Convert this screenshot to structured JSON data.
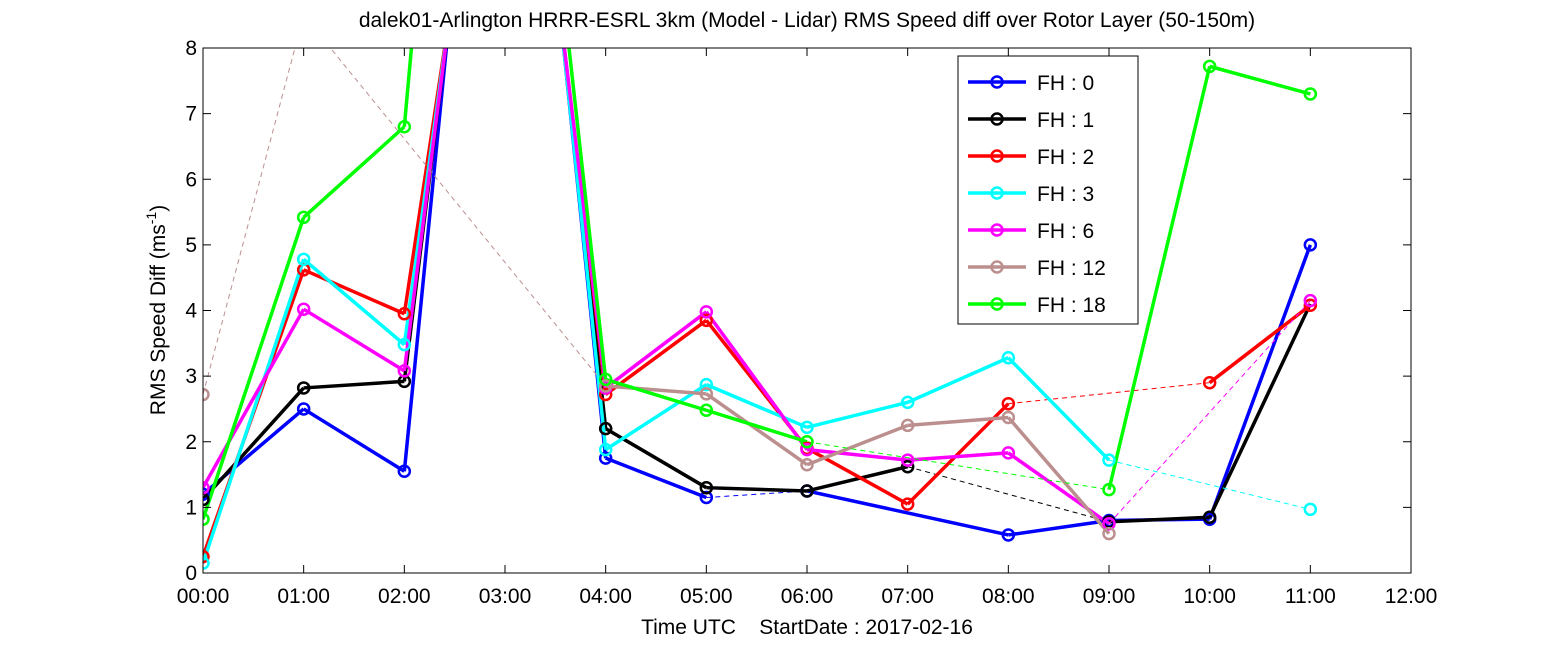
{
  "chart_data": {
    "type": "line",
    "title": "dalek01-Arlington HRRR-ESRL 3km (Model - Lidar) RMS Speed diff over Rotor Layer (50-150m)",
    "xlabel": "Time UTC    StartDate : 2017-02-16",
    "ylabel_main": "RMS Speed Diff (ms",
    "ylabel_sup": "-1",
    "ylabel_end": ")",
    "xlim": [
      0,
      12
    ],
    "ylim": [
      0,
      8
    ],
    "x_ticks": [
      0,
      1,
      2,
      3,
      4,
      5,
      6,
      7,
      8,
      9,
      10,
      11,
      12
    ],
    "x_tick_labels": [
      "00:00",
      "01:00",
      "02:00",
      "03:00",
      "04:00",
      "05:00",
      "06:00",
      "07:00",
      "08:00",
      "09:00",
      "10:00",
      "11:00",
      "12:00"
    ],
    "y_ticks": [
      0,
      1,
      2,
      3,
      4,
      5,
      6,
      7,
      8
    ],
    "y_tick_labels": [
      "0",
      "1",
      "2",
      "3",
      "4",
      "5",
      "6",
      "7",
      "8"
    ],
    "grid": false,
    "legend_position": "top-right",
    "series": [
      {
        "name": "FH : 0",
        "color": "#0000ff",
        "points": [
          [
            0,
            1.2
          ],
          [
            1,
            2.5
          ],
          [
            2,
            1.55
          ],
          [
            2.45,
            8.5
          ],
          [
            3.55,
            8.5
          ],
          [
            4,
            1.75
          ],
          [
            5,
            1.15
          ],
          [
            6,
            1.25
          ],
          [
            8,
            0.58
          ],
          [
            9,
            0.8
          ],
          [
            10,
            0.82
          ],
          [
            11,
            5.0
          ]
        ],
        "solid_segments": [
          [
            0,
            1
          ],
          [
            1,
            2
          ],
          [
            2,
            3
          ],
          [
            4,
            5
          ],
          [
            5,
            6
          ],
          [
            7,
            8
          ],
          [
            8,
            9
          ],
          [
            9,
            10
          ],
          [
            10,
            11
          ]
        ]
      },
      {
        "name": "FH : 1",
        "color": "#000000",
        "points": [
          [
            0,
            1.12
          ],
          [
            1,
            2.82
          ],
          [
            2,
            2.92
          ],
          [
            2.45,
            8.5
          ],
          [
            3.55,
            8.5
          ],
          [
            4,
            2.2
          ],
          [
            5,
            1.3
          ],
          [
            6,
            1.25
          ],
          [
            7,
            1.62
          ],
          [
            9,
            0.78
          ],
          [
            10,
            0.85
          ],
          [
            11,
            4.1
          ]
        ],
        "solid_segments": [
          [
            0,
            1
          ],
          [
            1,
            2
          ],
          [
            2,
            3
          ],
          [
            4,
            5
          ],
          [
            5,
            6
          ],
          [
            6,
            7
          ],
          [
            7,
            8
          ],
          [
            9,
            10
          ],
          [
            10,
            11
          ]
        ]
      },
      {
        "name": "FH : 2",
        "color": "#ff0000",
        "points": [
          [
            0,
            0.25
          ],
          [
            1,
            4.62
          ],
          [
            2,
            3.95
          ],
          [
            2.45,
            8.5
          ],
          [
            3.55,
            8.5
          ],
          [
            4,
            2.72
          ],
          [
            5,
            3.85
          ],
          [
            6,
            1.9
          ],
          [
            7,
            1.05
          ],
          [
            8,
            2.58
          ],
          [
            10,
            2.9
          ],
          [
            11,
            4.08
          ]
        ],
        "solid_segments": [
          [
            0,
            1
          ],
          [
            1,
            2
          ],
          [
            2,
            3
          ],
          [
            4,
            5
          ],
          [
            5,
            6
          ],
          [
            6,
            7
          ],
          [
            7,
            8
          ],
          [
            8,
            9
          ],
          [
            10,
            11
          ]
        ]
      },
      {
        "name": "FH : 3",
        "color": "#00ffff",
        "points": [
          [
            0,
            0.15
          ],
          [
            1,
            4.78
          ],
          [
            2,
            3.48
          ],
          [
            2.45,
            8.5
          ],
          [
            3.55,
            8.5
          ],
          [
            4,
            1.88
          ],
          [
            5,
            2.87
          ],
          [
            6,
            2.22
          ],
          [
            7,
            2.6
          ],
          [
            8,
            3.28
          ],
          [
            9,
            1.72
          ],
          [
            11,
            0.97
          ]
        ],
        "solid_segments": [
          [
            0,
            1
          ],
          [
            1,
            2
          ],
          [
            2,
            3
          ],
          [
            4,
            5
          ],
          [
            5,
            6
          ],
          [
            6,
            7
          ],
          [
            7,
            8
          ],
          [
            8,
            9
          ],
          [
            9,
            10
          ]
        ]
      },
      {
        "name": "FH : 6",
        "color": "#ff00ff",
        "points": [
          [
            0,
            1.3
          ],
          [
            1,
            4.02
          ],
          [
            2,
            3.08
          ],
          [
            2.45,
            8.5
          ],
          [
            3.55,
            8.5
          ],
          [
            4,
            2.82
          ],
          [
            5,
            3.98
          ],
          [
            6,
            1.88
          ],
          [
            7,
            1.72
          ],
          [
            8,
            1.83
          ],
          [
            9,
            0.75
          ],
          [
            11,
            4.15
          ]
        ],
        "solid_segments": [
          [
            0,
            1
          ],
          [
            1,
            2
          ],
          [
            2,
            3
          ],
          [
            4,
            5
          ],
          [
            5,
            6
          ],
          [
            6,
            7
          ],
          [
            7,
            8
          ],
          [
            8,
            9
          ],
          [
            9,
            10
          ]
        ]
      },
      {
        "name": "FH : 12",
        "color": "#bc8f8f",
        "points": [
          [
            0,
            2.72
          ],
          [
            1,
            8.5
          ],
          [
            4,
            2.85
          ],
          [
            5,
            2.73
          ],
          [
            6,
            1.65
          ],
          [
            7,
            2.25
          ],
          [
            8,
            2.37
          ],
          [
            9,
            0.6
          ]
        ],
        "solid_segments": [
          [
            2,
            3
          ],
          [
            3,
            4
          ],
          [
            4,
            5
          ],
          [
            5,
            6
          ],
          [
            6,
            7
          ]
        ]
      },
      {
        "name": "FH : 18",
        "color": "#00ff00",
        "points": [
          [
            0,
            0.82
          ],
          [
            1,
            5.42
          ],
          [
            2,
            6.8
          ],
          [
            2.1,
            8.5
          ],
          [
            3.6,
            8.5
          ],
          [
            4,
            2.95
          ],
          [
            5,
            2.48
          ],
          [
            6,
            2.0
          ],
          [
            9,
            1.27
          ],
          [
            10,
            7.72
          ],
          [
            11,
            7.3
          ]
        ],
        "solid_segments": [
          [
            0,
            1
          ],
          [
            1,
            2
          ],
          [
            2,
            3
          ],
          [
            4,
            5
          ],
          [
            5,
            6
          ],
          [
            6,
            7
          ],
          [
            8,
            9
          ],
          [
            9,
            10
          ]
        ]
      }
    ],
    "markers": {
      "FH : 0": [
        [
          0,
          1.2
        ],
        [
          1,
          2.5
        ],
        [
          2,
          1.55
        ],
        [
          4,
          1.75
        ],
        [
          5,
          1.15
        ],
        [
          6,
          1.25
        ],
        [
          8,
          0.58
        ],
        [
          9,
          0.8
        ],
        [
          10,
          0.82
        ],
        [
          11,
          5.0
        ]
      ],
      "FH : 1": [
        [
          0,
          1.12
        ],
        [
          1,
          2.82
        ],
        [
          2,
          2.92
        ],
        [
          4,
          2.2
        ],
        [
          5,
          1.3
        ],
        [
          6,
          1.25
        ],
        [
          7,
          1.62
        ],
        [
          9,
          0.78
        ],
        [
          10,
          0.85
        ]
      ],
      "FH : 2": [
        [
          0,
          0.25
        ],
        [
          1,
          4.62
        ],
        [
          2,
          3.95
        ],
        [
          4,
          2.72
        ],
        [
          5,
          3.85
        ],
        [
          6,
          1.9
        ],
        [
          7,
          1.05
        ],
        [
          8,
          2.58
        ],
        [
          10,
          2.9
        ],
        [
          11,
          4.08
        ]
      ],
      "FH : 3": [
        [
          0,
          0.15
        ],
        [
          1,
          4.78
        ],
        [
          2,
          3.48
        ],
        [
          4,
          1.88
        ],
        [
          5,
          2.87
        ],
        [
          6,
          2.22
        ],
        [
          7,
          2.6
        ],
        [
          8,
          3.28
        ],
        [
          9,
          1.72
        ],
        [
          11,
          0.97
        ]
      ],
      "FH : 6": [
        [
          0,
          1.3
        ],
        [
          1,
          4.02
        ],
        [
          2,
          3.08
        ],
        [
          4,
          2.82
        ],
        [
          5,
          3.98
        ],
        [
          6,
          1.88
        ],
        [
          7,
          1.72
        ],
        [
          8,
          1.83
        ],
        [
          9,
          0.75
        ],
        [
          11,
          4.15
        ]
      ],
      "FH : 12": [
        [
          0,
          2.72
        ],
        [
          4,
          2.85
        ],
        [
          5,
          2.73
        ],
        [
          6,
          1.65
        ],
        [
          7,
          2.25
        ],
        [
          8,
          2.37
        ],
        [
          9,
          0.6
        ]
      ],
      "FH : 18": [
        [
          0,
          0.82
        ],
        [
          1,
          5.42
        ],
        [
          2,
          6.8
        ],
        [
          4,
          2.95
        ],
        [
          5,
          2.48
        ],
        [
          6,
          2.0
        ],
        [
          9,
          1.27
        ],
        [
          10,
          7.72
        ],
        [
          11,
          7.3
        ]
      ]
    }
  }
}
